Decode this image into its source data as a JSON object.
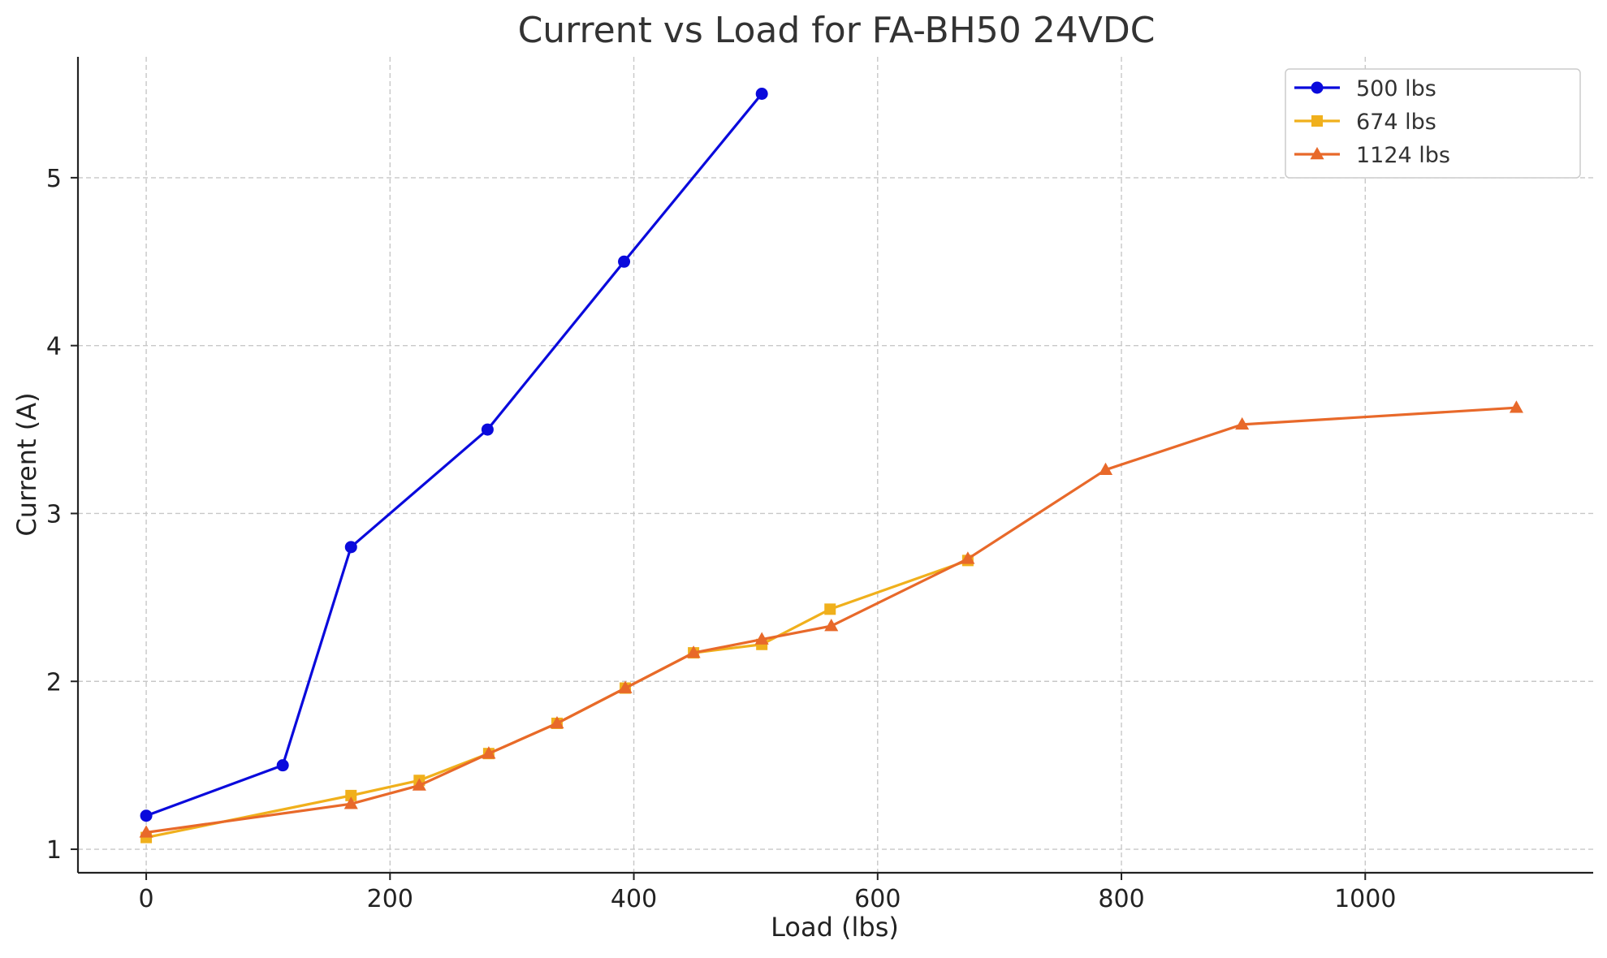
{
  "chart_data": {
    "type": "line",
    "title": "Current vs Load for FA-BH50 24VDC",
    "xlabel": "Load (lbs)",
    "ylabel": "Current (A)",
    "xlim": [
      -56,
      1187
    ],
    "ylim": [
      0.86,
      5.72
    ],
    "xticks": [
      0,
      200,
      400,
      600,
      800,
      1000
    ],
    "yticks": [
      1,
      2,
      3,
      4,
      5
    ],
    "grid": true,
    "legend_position": "top-right",
    "series": [
      {
        "name": "500 lbs",
        "color": "#0a0adc",
        "marker": "circle",
        "x": [
          0,
          112,
          168,
          280,
          392,
          505
        ],
        "y": [
          1.2,
          1.5,
          2.8,
          3.5,
          4.5,
          5.5
        ]
      },
      {
        "name": "674 lbs",
        "color": "#f0b01c",
        "marker": "square",
        "x": [
          0,
          168,
          224,
          281,
          337,
          393,
          449,
          505,
          561,
          674
        ],
        "y": [
          1.07,
          1.32,
          1.41,
          1.57,
          1.75,
          1.96,
          2.17,
          2.22,
          2.43,
          2.72
        ]
      },
      {
        "name": "1124 lbs",
        "color": "#e8692a",
        "marker": "triangle",
        "x": [
          0,
          168,
          224,
          281,
          337,
          393,
          449,
          505,
          562,
          674,
          787,
          899,
          1124
        ],
        "y": [
          1.1,
          1.27,
          1.38,
          1.57,
          1.75,
          1.96,
          2.17,
          2.25,
          2.33,
          2.73,
          3.26,
          3.53,
          3.63
        ]
      }
    ]
  }
}
